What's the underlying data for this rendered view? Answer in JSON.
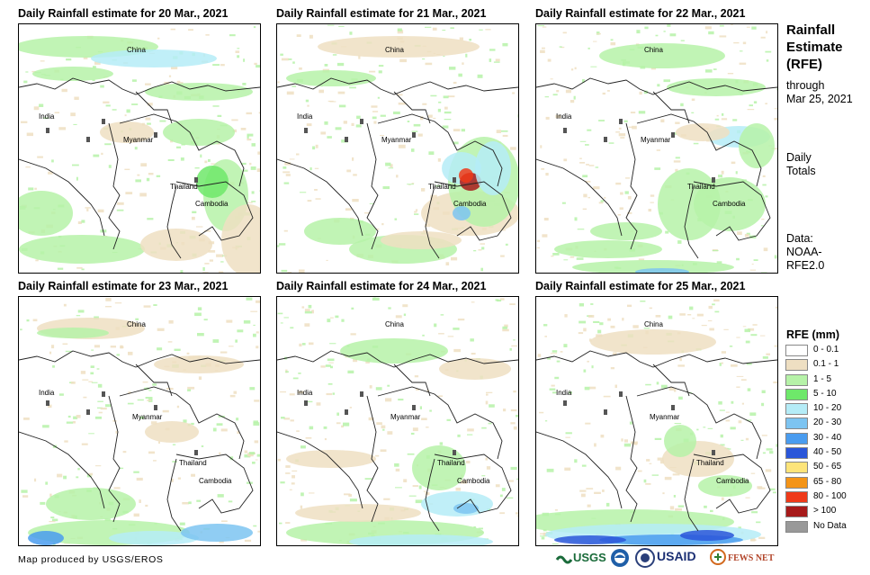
{
  "panels": [
    {
      "title": "Daily Rainfall estimate for 20 Mar., 2021",
      "labels": {
        "china": "China",
        "india": "India",
        "myanmar": "Myanmar",
        "thailand": "Thailand",
        "cambodia": "Cambodia"
      }
    },
    {
      "title": "Daily Rainfall estimate for 21 Mar., 2021",
      "labels": {
        "china": "China",
        "india": "India",
        "myanmar": "Myanmar",
        "thailand": "Thailand",
        "cambodia": "Cambodia"
      }
    },
    {
      "title": "Daily Rainfall estimate for 22 Mar., 2021",
      "labels": {
        "china": "China",
        "india": "India",
        "myanmar": "Myanmar",
        "thailand": "Thailand",
        "cambodia": "Cambodia"
      }
    },
    {
      "title": "Daily Rainfall estimate for 23 Mar., 2021",
      "labels": {
        "china": "China",
        "india": "India",
        "myanmar": "Myanmar",
        "thailand": "Thailand",
        "cambodia": "Cambodia"
      }
    },
    {
      "title": "Daily Rainfall estimate for 24 Mar., 2021",
      "labels": {
        "china": "China",
        "india": "India",
        "myanmar": "Myanmar",
        "thailand": "Thailand",
        "cambodia": "Cambodia"
      }
    },
    {
      "title": "Daily Rainfall estimate for 25 Mar., 2021",
      "labels": {
        "china": "China",
        "india": "India",
        "myanmar": "Myanmar",
        "thailand": "Thailand",
        "cambodia": "Cambodia"
      }
    }
  ],
  "sidebar": {
    "title_lines": [
      "Rainfall",
      "Estimate",
      "(RFE)"
    ],
    "through_lines": [
      "through",
      "Mar 25, 2021"
    ],
    "totals_lines": [
      "Daily",
      "Totals"
    ],
    "data_lines": [
      "Data:",
      "NOAA-",
      "RFE2.0"
    ]
  },
  "legend": {
    "title": "RFE (mm)",
    "items": [
      {
        "label": "0 - 0.1",
        "color": "#ffffff"
      },
      {
        "label": "0.1 - 1",
        "color": "#eedfc2"
      },
      {
        "label": "1 - 5",
        "color": "#b6f2a8"
      },
      {
        "label": "5 - 10",
        "color": "#6ee86a"
      },
      {
        "label": "10 - 20",
        "color": "#b5ecf7"
      },
      {
        "label": "20 - 30",
        "color": "#7dc4f1"
      },
      {
        "label": "30 - 40",
        "color": "#4a9cef"
      },
      {
        "label": "40 - 50",
        "color": "#2a56d9"
      },
      {
        "label": "50 - 65",
        "color": "#fde47a"
      },
      {
        "label": "65 - 80",
        "color": "#f49417"
      },
      {
        "label": "80 - 100",
        "color": "#ef3a19"
      },
      {
        "label": "> 100",
        "color": "#a71a1a"
      },
      {
        "label": "No Data",
        "color": "#999999"
      }
    ]
  },
  "footer": {
    "credit": "Map produced by USGS/EROS"
  },
  "logos": {
    "usgs": "USGS",
    "noaa": "NOAA",
    "usaid": "USAID",
    "fewsnet": "FEWS NET"
  }
}
